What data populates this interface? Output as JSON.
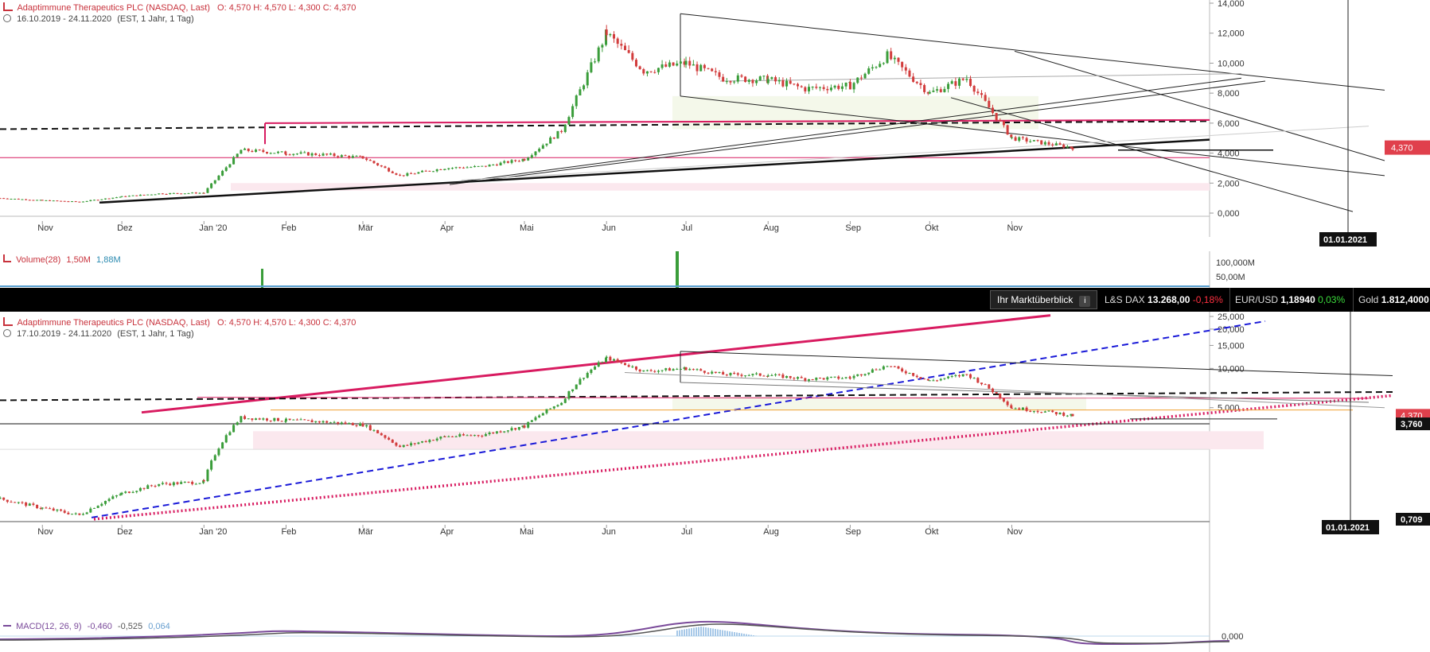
{
  "top_panel": {
    "instrument": "Adaptimmune Therapeutics PLC (NASDAQ, Last)",
    "ohlc": "O: 4,570  H: 4,570  L: 4,300  C: 4,370",
    "range": "16.10.2019 - 24.11.2020",
    "params": "(EST, 1 Jahr, 1 Tag)",
    "price_badge": "4,370",
    "date_badge": "01.01.2021"
  },
  "volume_panel": {
    "label": "Volume(28)",
    "v1": "1,50M",
    "v2": "1,88M",
    "ticks": [
      "100,000M",
      "50,00M"
    ]
  },
  "ticker": {
    "button": "Ihr Marktüberblick",
    "info": "i",
    "items": [
      {
        "name": "L&S DAX",
        "value": "13.268,00",
        "change": "-0,18%"
      },
      {
        "name": "EUR/USD",
        "value": "1,18940",
        "change": "0,03%"
      },
      {
        "name": "Gold",
        "value": "1.812,4000",
        "change": ""
      }
    ]
  },
  "bottom_panel": {
    "instrument": "Adaptimmune Therapeutics PLC (NASDAQ, Last)",
    "ohlc": "O: 4,570  H: 4,570  L: 4,300  C: 4,370",
    "range": "17.10.2019 - 24.11.2020",
    "params": "(EST, 1 Jahr, 1 Tag)",
    "price_badge": "4,370",
    "level_badge": "3,760",
    "low_badge": "0,709",
    "date_badge": "01.01.2021"
  },
  "macd_panel": {
    "label": "MACD(12, 26, 9)",
    "v1": "-0,460",
    "v2": "-0,525",
    "v3": "0,064",
    "tick": "0,000"
  },
  "colors": {
    "up": "#3a9d3a",
    "down": "#d23c3c",
    "magenta": "#d81b60",
    "blue": "#1a1ad8",
    "orange": "#f0a030"
  },
  "chart_data": [
    {
      "type": "candlestick",
      "scale": "linear",
      "x_tick_labels": [
        "Nov",
        "Dez",
        "Jan '20",
        "Feb",
        "Mär",
        "Apr",
        "Mai",
        "Jun",
        "Jul",
        "Aug",
        "Sep",
        "Okt",
        "Nov"
      ],
      "y_tick_labels": [
        "0,000",
        "2,000",
        "4,000",
        "6,000",
        "8,000",
        "10,000",
        "12,000",
        "14,000"
      ],
      "ylim": [
        0,
        14
      ],
      "series": [
        {
          "x": [
            "2019-10-16",
            "2019-11-01",
            "2019-11-15",
            "2019-12-01",
            "2019-12-15",
            "2020-01-01",
            "2020-01-15",
            "2020-02-01",
            "2020-02-15",
            "2020-03-01",
            "2020-03-15",
            "2020-04-01",
            "2020-04-15",
            "2020-05-01",
            "2020-05-15",
            "2020-06-01",
            "2020-06-15",
            "2020-07-01",
            "2020-07-15",
            "2020-08-01",
            "2020-08-15",
            "2020-09-01",
            "2020-09-15",
            "2020-10-01",
            "2020-10-15",
            "2020-11-01",
            "2020-11-24"
          ],
          "y": [
            1.0,
            0.85,
            0.75,
            1.1,
            1.3,
            1.35,
            4.2,
            4.0,
            3.9,
            3.7,
            2.5,
            3.0,
            3.1,
            3.6,
            5.5,
            12.0,
            9.5,
            10.0,
            9.0,
            8.9,
            8.3,
            8.5,
            10.5,
            8.0,
            9.0,
            5.0,
            4.37
          ]
        }
      ],
      "reference_lines": {
        "dashed_black": 5.6,
        "magenta_top": 6.0,
        "magenta_bottom": 3.7
      }
    },
    {
      "type": "candlestick",
      "scale": "log",
      "x_tick_labels": [
        "Nov",
        "Dez",
        "Jan '20",
        "Feb",
        "Mär",
        "Apr",
        "Mai",
        "Jun",
        "Jul",
        "Aug",
        "Sep",
        "Okt",
        "Nov"
      ],
      "y_tick_labels": [
        "25,000",
        "20,000",
        "15,000",
        "10,000",
        "5,000"
      ],
      "series": [
        {
          "x": [
            "2019-10-16",
            "2019-11-01",
            "2019-11-15",
            "2019-12-01",
            "2019-12-15",
            "2020-01-01",
            "2020-01-15",
            "2020-02-01",
            "2020-02-15",
            "2020-03-01",
            "2020-03-15",
            "2020-04-01",
            "2020-04-15",
            "2020-05-01",
            "2020-05-15",
            "2020-06-01",
            "2020-06-15",
            "2020-07-01",
            "2020-07-15",
            "2020-08-01",
            "2020-08-15",
            "2020-09-01",
            "2020-09-15",
            "2020-10-01",
            "2020-10-15",
            "2020-11-01",
            "2020-11-24"
          ],
          "y": [
            1.0,
            0.85,
            0.75,
            1.1,
            1.3,
            1.35,
            4.2,
            4.0,
            3.9,
            3.7,
            2.5,
            3.0,
            3.1,
            3.6,
            5.5,
            12.0,
            9.5,
            10.0,
            9.0,
            8.9,
            8.3,
            8.5,
            10.5,
            8.0,
            9.0,
            5.0,
            4.37
          ]
        }
      ],
      "reference_lines": {
        "horizontal_black": 3.76,
        "orange": 4.8
      }
    }
  ]
}
